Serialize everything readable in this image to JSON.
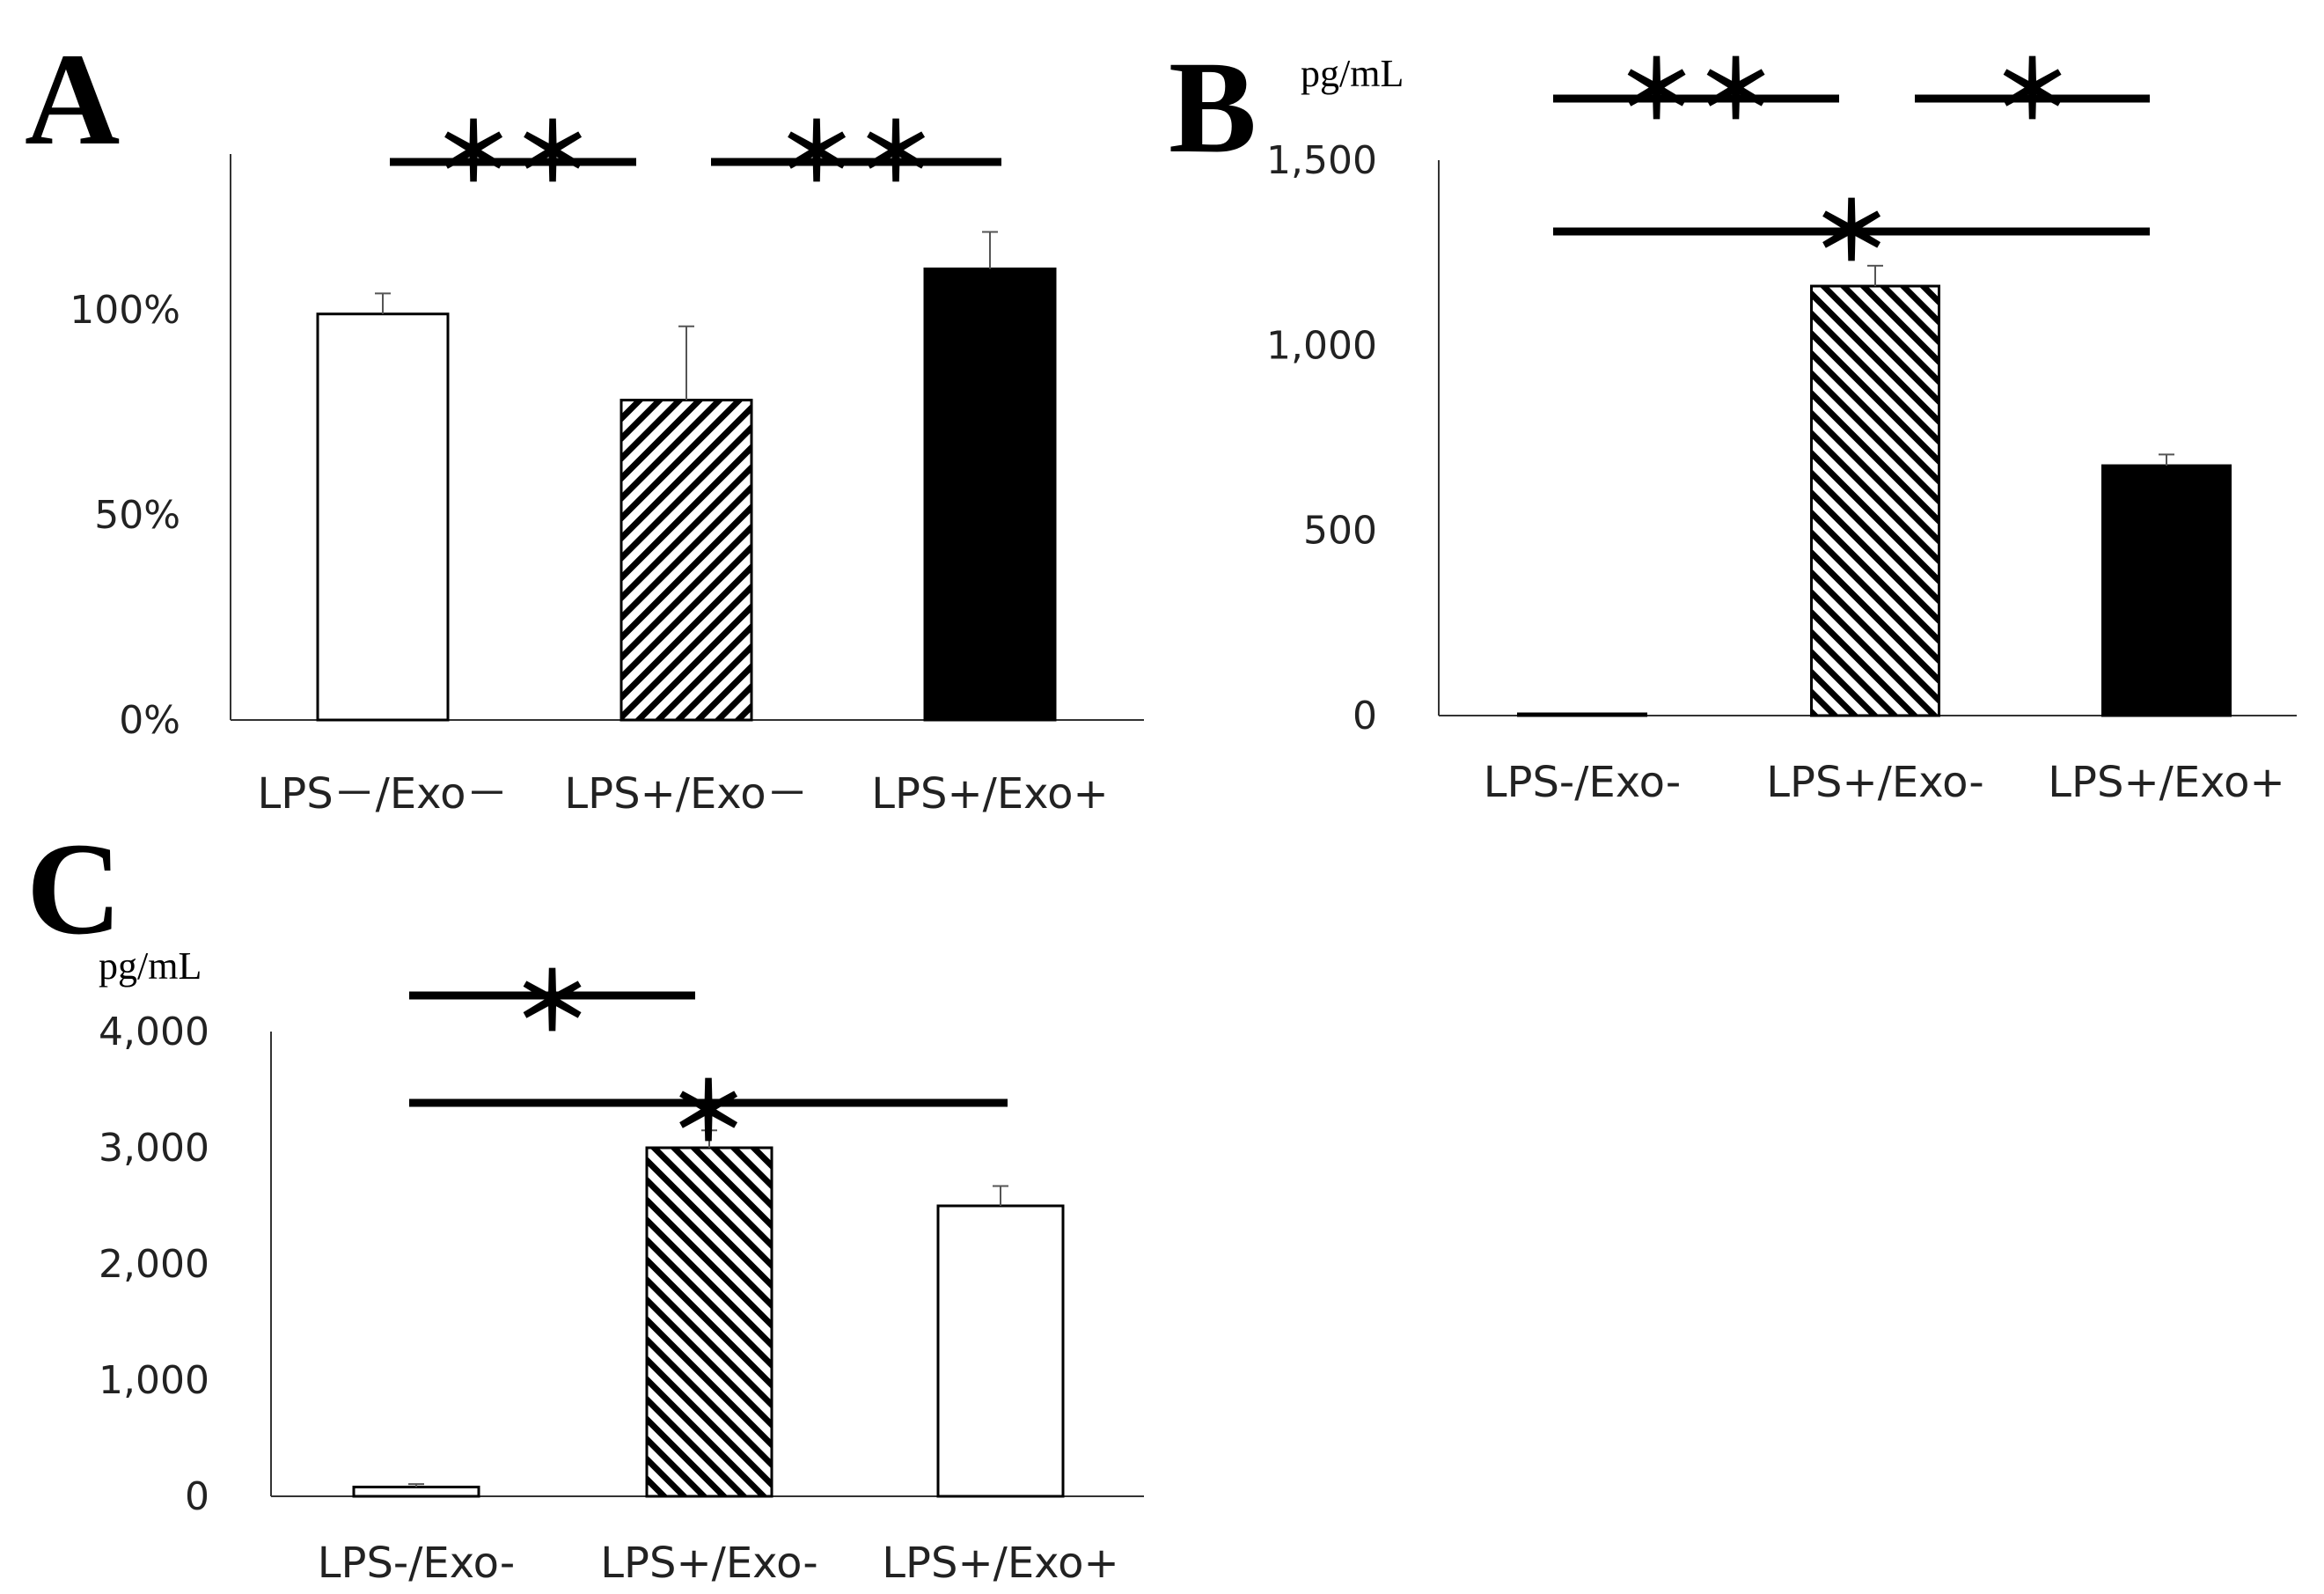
{
  "chart_data": [
    {
      "panel": "A",
      "type": "bar",
      "categories": [
        "LPS－/Exo－",
        "LPS+/Exo－",
        "LPS+/Exo+"
      ],
      "values": [
        99,
        78,
        110
      ],
      "errors": [
        5,
        18,
        9
      ],
      "fills": [
        "white",
        "hatch-right",
        "black"
      ],
      "y_ticks": [
        "0%",
        "50%",
        "100%"
      ],
      "y_tick_values": [
        0,
        50,
        100
      ],
      "ylim": [
        0,
        138
      ],
      "unit": "",
      "significance": [
        {
          "from": 0,
          "to": 1,
          "label": "＊＊"
        },
        {
          "from": 1,
          "to": 2,
          "label": "＊＊"
        }
      ]
    },
    {
      "panel": "B",
      "type": "bar",
      "categories": [
        "LPS-/Exo-",
        "LPS+/Exo-",
        "LPS+/Exo+"
      ],
      "values": [
        2,
        1160,
        675
      ],
      "errors": [
        0,
        55,
        30
      ],
      "fills": [
        "white",
        "hatch-left",
        "black"
      ],
      "y_ticks": [
        "0",
        "500",
        "1,000",
        "1,500"
      ],
      "y_tick_values": [
        0,
        500,
        1000,
        1500
      ],
      "ylim": [
        0,
        1500
      ],
      "unit": "pg/mL",
      "significance": [
        {
          "from": 0,
          "to": 1,
          "label": "＊＊"
        },
        {
          "from": 1,
          "to": 2,
          "label": "＊"
        },
        {
          "from": 0,
          "to": 2,
          "label": "＊"
        }
      ]
    },
    {
      "panel": "C",
      "type": "bar",
      "categories": [
        "LPS-/Exo-",
        "LPS+/Exo-",
        "LPS+/Exo+"
      ],
      "values": [
        80,
        3000,
        2500
      ],
      "errors": [
        25,
        150,
        170
      ],
      "fills": [
        "white",
        "hatch-left",
        "white"
      ],
      "y_ticks": [
        "0",
        "1,000",
        "2,000",
        "3,000",
        "4,000"
      ],
      "y_tick_values": [
        0,
        1000,
        2000,
        3000,
        4000
      ],
      "ylim": [
        0,
        4000
      ],
      "unit": "pg/mL",
      "significance": [
        {
          "from": 0,
          "to": 1,
          "label": "＊"
        },
        {
          "from": 0,
          "to": 2,
          "label": "＊"
        }
      ]
    }
  ]
}
